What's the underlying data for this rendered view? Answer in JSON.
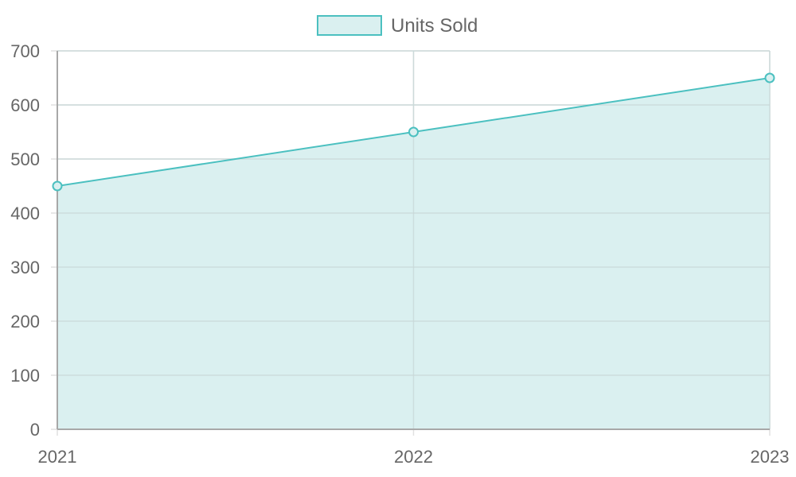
{
  "chart_data": {
    "type": "area",
    "categories": [
      "2021",
      "2022",
      "2023"
    ],
    "series": [
      {
        "name": "Units Sold",
        "values": [
          450,
          550,
          650
        ],
        "line_color": "#4BC0C0",
        "fill_color": "#DAF0F0"
      }
    ],
    "y_ticks": [
      "0",
      "100",
      "200",
      "300",
      "400",
      "500",
      "600",
      "700"
    ],
    "ylim": [
      0,
      700
    ],
    "legend_position": "top-center",
    "grid": true
  },
  "colors": {
    "grid": "#E1E1E1",
    "axis": "#A8A8A8",
    "text": "#666666"
  }
}
